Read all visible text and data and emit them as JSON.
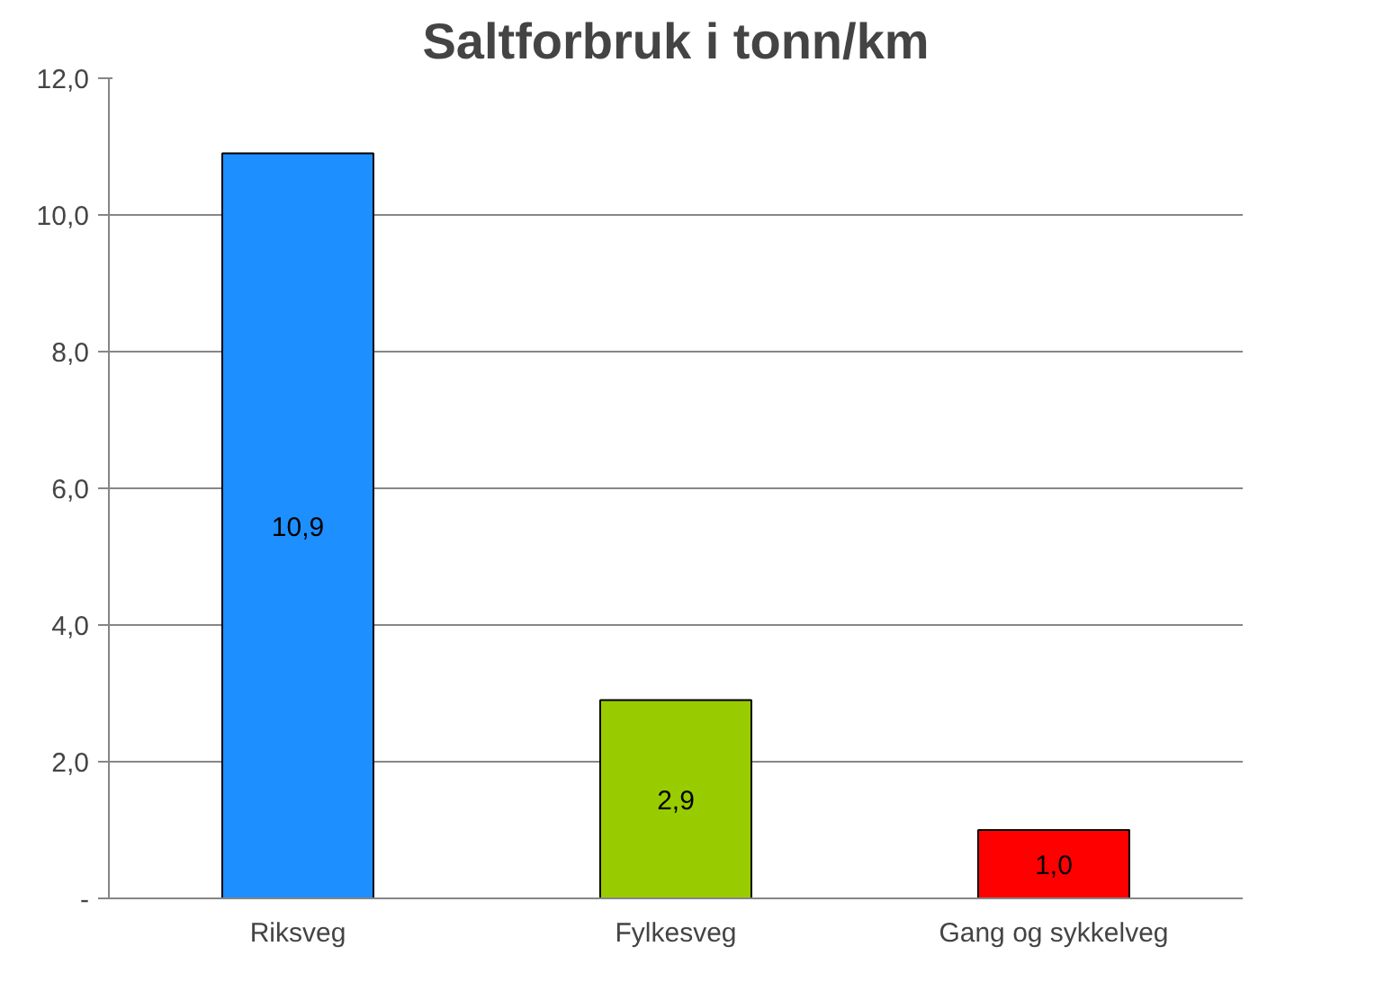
{
  "chart_data": {
    "type": "bar",
    "title": "Saltforbruk i tonn/km",
    "categories": [
      "Riksveg",
      "Fylkesveg",
      "Gang og sykkelveg"
    ],
    "values": [
      10.9,
      2.9,
      1.0
    ],
    "colors": [
      "#1e8fff",
      "#99cc00",
      "#ff0000"
    ],
    "value_labels": [
      "10,9",
      "2,9",
      "1,0"
    ],
    "ylim": [
      0,
      12
    ],
    "yticks": [
      {
        "value": 0,
        "label": "-"
      },
      {
        "value": 2,
        "label": "2,0"
      },
      {
        "value": 4,
        "label": "4,0"
      },
      {
        "value": 6,
        "label": "6,0"
      },
      {
        "value": 8,
        "label": "8,0"
      },
      {
        "value": 10,
        "label": "10,0"
      },
      {
        "value": 12,
        "label": "12,0"
      }
    ],
    "grid": "y"
  }
}
